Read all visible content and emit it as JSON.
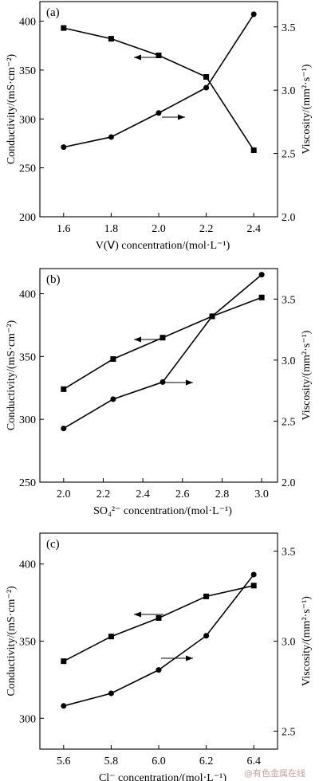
{
  "chart_data": [
    {
      "type": "line",
      "panel": "(a)",
      "xlabel": "V(Ⅴ) concentration/(mol·L⁻¹)",
      "ylabel_left": "Conductivity/(mS·cm⁻²)",
      "ylabel_right": "Viscosity/(mm²·s⁻¹)",
      "xlim": [
        1.5,
        2.5
      ],
      "ylim_left": [
        200,
        420
      ],
      "ylim_right": [
        2.0,
        3.7
      ],
      "xticks": [
        "1.6",
        "1.8",
        "2.0",
        "2.2",
        "2.4"
      ],
      "yticks_left": [
        "200",
        "250",
        "300",
        "350",
        "400"
      ],
      "yticks_right": [
        "2.0",
        "2.5",
        "3.0",
        "3.5"
      ],
      "x": [
        1.6,
        1.8,
        2.0,
        2.2,
        2.4
      ],
      "series": [
        {
          "axis": "left",
          "marker": "square",
          "values": [
            393,
            382,
            365,
            343,
            268
          ]
        },
        {
          "axis": "right",
          "marker": "circle",
          "values": [
            2.55,
            2.63,
            2.82,
            3.02,
            3.6
          ]
        }
      ]
    },
    {
      "type": "line",
      "panel": "(b)",
      "xlabel": "SO₄²⁻ concentration/(mol·L⁻¹)",
      "ylabel_left": "Conductivity/(mS·cm⁻²)",
      "ylabel_right": "Viscosity/(mm²·s⁻¹)",
      "xlim": [
        1.88,
        3.08
      ],
      "ylim_left": [
        250,
        420
      ],
      "ylim_right": [
        2.0,
        3.75
      ],
      "xticks": [
        "2.0",
        "2.2",
        "2.4",
        "2.6",
        "2.8",
        "3.0"
      ],
      "yticks_left": [
        "250",
        "300",
        "350",
        "400"
      ],
      "yticks_right": [
        "2.0",
        "2.5",
        "3.0",
        "3.5"
      ],
      "x": [
        2.0,
        2.25,
        2.5,
        2.75,
        3.0
      ],
      "series": [
        {
          "axis": "left",
          "marker": "square",
          "values": [
            324,
            348,
            365,
            382,
            397
          ]
        },
        {
          "axis": "right",
          "marker": "circle",
          "values": [
            2.44,
            2.68,
            2.82,
            3.36,
            3.7
          ]
        }
      ]
    },
    {
      "type": "line",
      "panel": "(c)",
      "xlabel": "Cl⁻ concentration/(mol·L⁻¹)",
      "ylabel_left": "Conductivity/(mS·cm⁻²)",
      "ylabel_right": "Viscosity/(mm²·s⁻¹)",
      "xlim": [
        5.5,
        6.5
      ],
      "ylim_left": [
        280,
        420
      ],
      "ylim_right": [
        2.4,
        3.6
      ],
      "xticks": [
        "5.6",
        "5.8",
        "6.0",
        "6.2",
        "6.4"
      ],
      "yticks_left": [
        "300",
        "350",
        "400"
      ],
      "yticks_right": [
        "2.5",
        "3.0",
        "3.5"
      ],
      "x": [
        5.6,
        5.8,
        6.0,
        6.2,
        6.4
      ],
      "series": [
        {
          "axis": "left",
          "marker": "square",
          "values": [
            337,
            353,
            365,
            379,
            386
          ]
        },
        {
          "axis": "right",
          "marker": "circle",
          "values": [
            2.64,
            2.71,
            2.84,
            3.03,
            3.37
          ]
        }
      ]
    }
  ],
  "watermark": "@有色金属在线"
}
